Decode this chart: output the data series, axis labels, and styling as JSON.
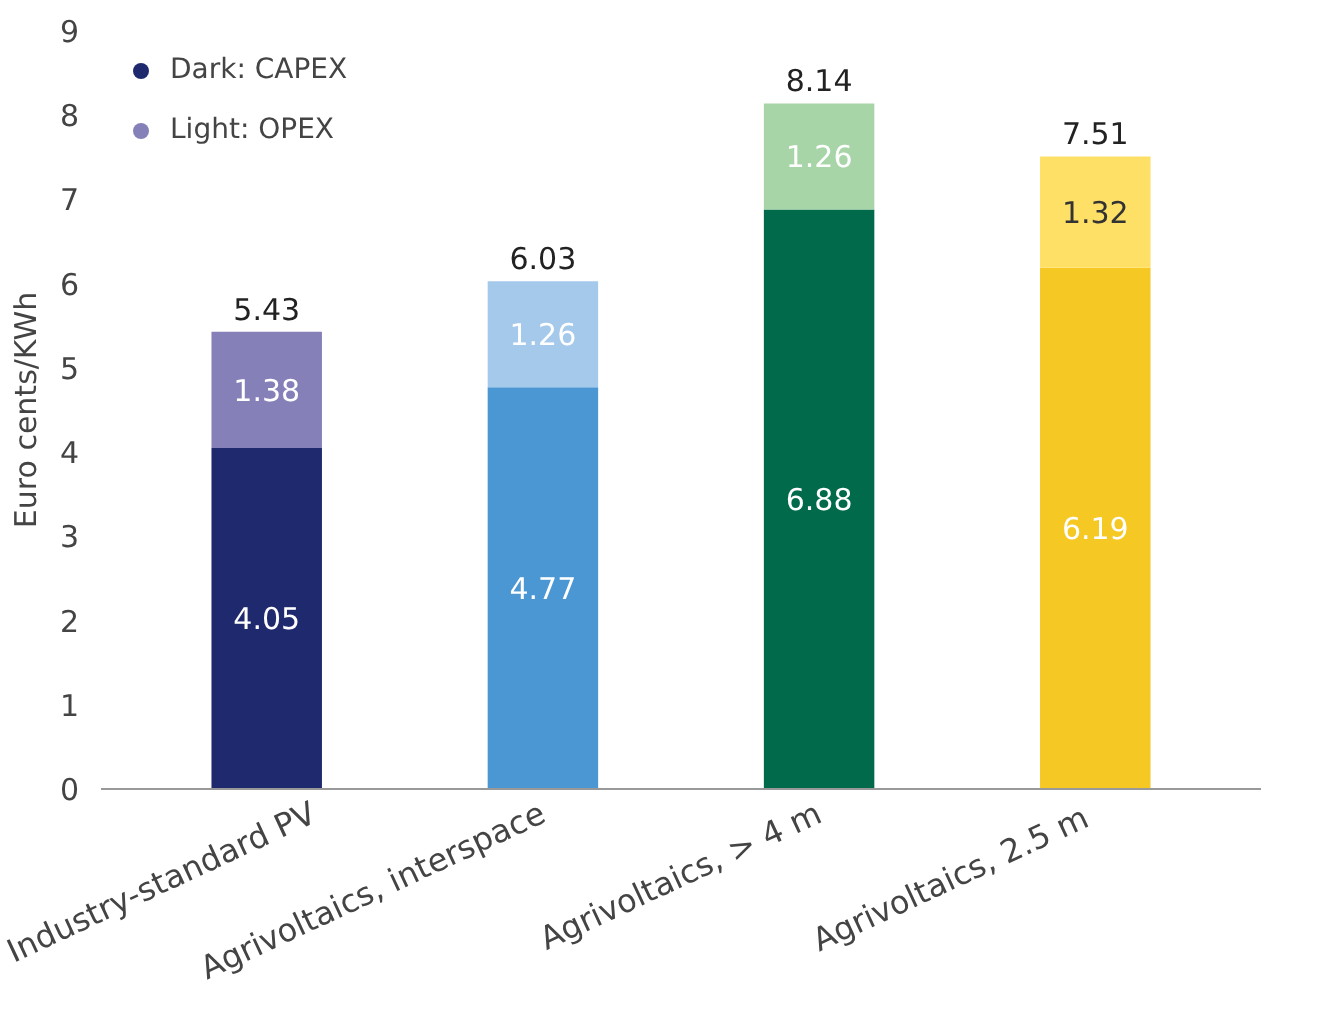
{
  "chart_data": {
    "type": "bar",
    "stacked": true,
    "ylabel": "Euro cents/KWh",
    "categories": [
      "Industry-standard PV",
      "Agrivoltaics, interspace",
      "Agrivoltaics, > 4 m",
      "Agrivoltaics,  2.5 m"
    ],
    "series": [
      {
        "name": "Dark: CAPEX",
        "color": "#1f2a6e",
        "colors": [
          "#1f2a6e",
          "#4a97d4",
          "#006a4a",
          "#f5c823"
        ],
        "values": [
          4.05,
          4.77,
          6.88,
          6.19
        ]
      },
      {
        "name": "Light: OPEX",
        "color": "#8580b8",
        "colors": [
          "#8580b8",
          "#a5c9eb",
          "#a8d5a8",
          "#ffe066"
        ],
        "values": [
          1.38,
          1.26,
          1.26,
          1.32
        ]
      }
    ],
    "totals": [
      "5.43",
      "6.03",
      "8.14",
      "7.51"
    ],
    "data_labels": true,
    "ylim": [
      0,
      9
    ],
    "yticks": [
      0,
      1,
      2,
      3,
      4,
      5,
      6,
      7,
      8,
      9
    ],
    "grid": false,
    "legend": "top left"
  }
}
